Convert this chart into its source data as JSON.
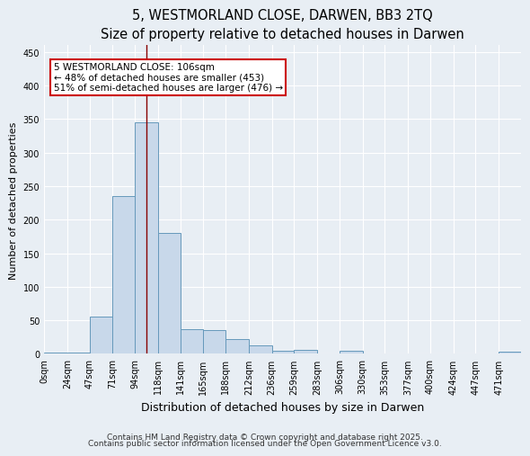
{
  "title_line1": "5, WESTMORLAND CLOSE, DARWEN, BB3 2TQ",
  "title_line2": "Size of property relative to detached houses in Darwen",
  "xlabel": "Distribution of detached houses by size in Darwen",
  "ylabel": "Number of detached properties",
  "bin_labels": [
    "0sqm",
    "24sqm",
    "47sqm",
    "71sqm",
    "94sqm",
    "118sqm",
    "141sqm",
    "165sqm",
    "188sqm",
    "212sqm",
    "236sqm",
    "259sqm",
    "283sqm",
    "306sqm",
    "330sqm",
    "353sqm",
    "377sqm",
    "400sqm",
    "424sqm",
    "447sqm",
    "471sqm"
  ],
  "bin_edges": [
    0,
    24,
    47,
    71,
    94,
    118,
    141,
    165,
    188,
    212,
    236,
    259,
    283,
    306,
    330,
    353,
    377,
    400,
    424,
    447,
    471,
    494
  ],
  "bar_heights": [
    2,
    2,
    55,
    235,
    345,
    180,
    37,
    35,
    22,
    12,
    5,
    6,
    0,
    4,
    0,
    0,
    0,
    0,
    0,
    0,
    3
  ],
  "bar_color": "#c8d8ea",
  "bar_edge_color": "#6699bb",
  "property_size": 106,
  "annotation_line1": "5 WESTMORLAND CLOSE: 106sqm",
  "annotation_line2": "← 48% of detached houses are smaller (453)",
  "annotation_line3": "51% of semi-detached houses are larger (476) →",
  "annotation_box_color": "#ffffff",
  "annotation_box_edge_color": "#cc0000",
  "vline_color": "#880000",
  "ylim": [
    0,
    460
  ],
  "yticks": [
    0,
    50,
    100,
    150,
    200,
    250,
    300,
    350,
    400,
    450
  ],
  "background_color": "#e8eef4",
  "grid_color": "#ffffff",
  "footer_line1": "Contains HM Land Registry data © Crown copyright and database right 2025.",
  "footer_line2": "Contains public sector information licensed under the Open Government Licence v3.0.",
  "title_fontsize": 10.5,
  "subtitle_fontsize": 9.5,
  "tick_fontsize": 7,
  "ylabel_fontsize": 8,
  "xlabel_fontsize": 9,
  "footer_fontsize": 6.5,
  "annot_fontsize": 7.5
}
